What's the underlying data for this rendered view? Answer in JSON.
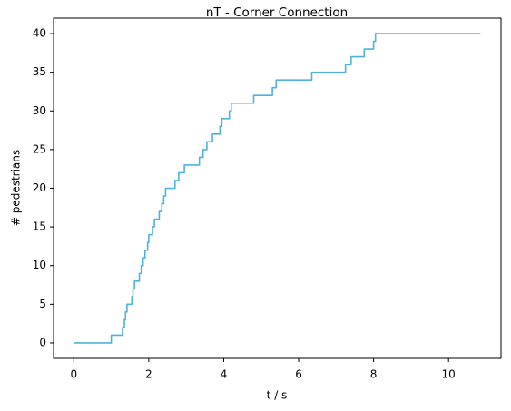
{
  "chart_data": {
    "type": "line",
    "title": "nT - Corner Connection",
    "xlabel": "t / s",
    "ylabel": "# pedestrians",
    "xlim": [
      -0.54,
      11.4
    ],
    "ylim": [
      -2,
      42
    ],
    "xticks": [
      0,
      2,
      4,
      6,
      8,
      10
    ],
    "yticks": [
      0,
      5,
      10,
      15,
      20,
      25,
      30,
      35,
      40
    ],
    "grid": false,
    "series": [
      {
        "color": "#4fb3d9",
        "points": [
          [
            0,
            0
          ],
          [
            1.0,
            0
          ],
          [
            1.0,
            1
          ],
          [
            1.3,
            1
          ],
          [
            1.3,
            2
          ],
          [
            1.35,
            2
          ],
          [
            1.35,
            3
          ],
          [
            1.38,
            3
          ],
          [
            1.38,
            4
          ],
          [
            1.42,
            4
          ],
          [
            1.42,
            5
          ],
          [
            1.55,
            5
          ],
          [
            1.55,
            6
          ],
          [
            1.58,
            6
          ],
          [
            1.58,
            7
          ],
          [
            1.62,
            7
          ],
          [
            1.62,
            8
          ],
          [
            1.75,
            8
          ],
          [
            1.75,
            9
          ],
          [
            1.8,
            9
          ],
          [
            1.8,
            10
          ],
          [
            1.85,
            10
          ],
          [
            1.85,
            11
          ],
          [
            1.9,
            11
          ],
          [
            1.9,
            12
          ],
          [
            1.97,
            12
          ],
          [
            1.97,
            13
          ],
          [
            2.0,
            13
          ],
          [
            2.0,
            14
          ],
          [
            2.1,
            14
          ],
          [
            2.1,
            15
          ],
          [
            2.15,
            15
          ],
          [
            2.15,
            16
          ],
          [
            2.28,
            16
          ],
          [
            2.28,
            17
          ],
          [
            2.35,
            17
          ],
          [
            2.35,
            18
          ],
          [
            2.4,
            18
          ],
          [
            2.4,
            19
          ],
          [
            2.45,
            19
          ],
          [
            2.45,
            20
          ],
          [
            2.7,
            20
          ],
          [
            2.7,
            21
          ],
          [
            2.8,
            21
          ],
          [
            2.8,
            22
          ],
          [
            2.95,
            22
          ],
          [
            2.95,
            23
          ],
          [
            3.35,
            23
          ],
          [
            3.35,
            24
          ],
          [
            3.45,
            24
          ],
          [
            3.45,
            25
          ],
          [
            3.55,
            25
          ],
          [
            3.55,
            26
          ],
          [
            3.7,
            26
          ],
          [
            3.7,
            27
          ],
          [
            3.9,
            27
          ],
          [
            3.9,
            28
          ],
          [
            3.95,
            28
          ],
          [
            3.95,
            29
          ],
          [
            4.15,
            29
          ],
          [
            4.15,
            30
          ],
          [
            4.2,
            30
          ],
          [
            4.2,
            31
          ],
          [
            4.8,
            31
          ],
          [
            4.8,
            32
          ],
          [
            5.3,
            32
          ],
          [
            5.3,
            33
          ],
          [
            5.4,
            33
          ],
          [
            5.4,
            34
          ],
          [
            6.35,
            34
          ],
          [
            6.35,
            35
          ],
          [
            7.25,
            35
          ],
          [
            7.25,
            36
          ],
          [
            7.4,
            36
          ],
          [
            7.4,
            37
          ],
          [
            7.75,
            37
          ],
          [
            7.75,
            38
          ],
          [
            8.0,
            38
          ],
          [
            8.0,
            39
          ],
          [
            8.05,
            39
          ],
          [
            8.05,
            40
          ],
          [
            10.85,
            40
          ]
        ]
      }
    ]
  }
}
